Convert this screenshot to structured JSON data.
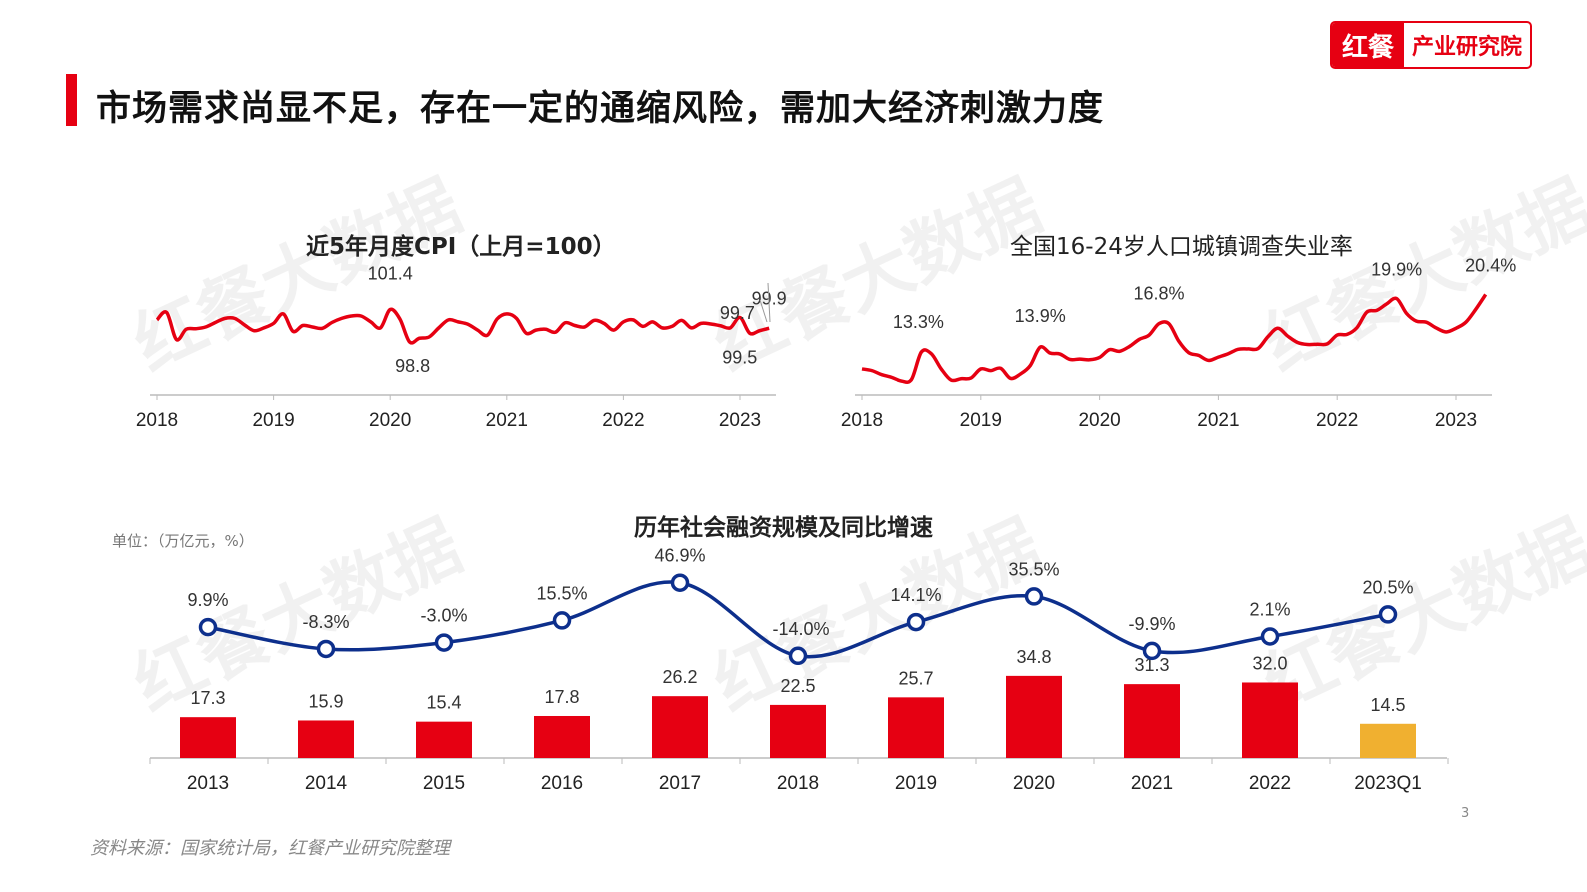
{
  "header": {
    "title": "市场需求尚显不足，存在一定的通缩风险，需加大经济刺激力度",
    "logo_left": "红餐",
    "logo_right": "产业研究院"
  },
  "watermark": "红餐大数据",
  "colors": {
    "accent": "#e60012",
    "line_blue": "#0d2f8c",
    "highlight_bar": "#f0b030",
    "axis": "#bbbbbb"
  },
  "footer": {
    "source": "资料来源：国家统计局，红餐产业研究院整理",
    "page": "3"
  },
  "chart_data": [
    {
      "type": "line",
      "title": "近5年月度CPI（上月=100）",
      "x_ticks": [
        "2018",
        "2019",
        "2020",
        "2021",
        "2022",
        "2023"
      ],
      "x_start": "2018-01",
      "x_end": "2023-04",
      "frequency": "monthly",
      "series": [
        {
          "values": [
            100.57,
            101.16,
            99.0,
            99.82,
            99.86,
            100.0,
            100.36,
            100.69,
            100.69,
            100.17,
            99.7,
            99.93,
            100.29,
            101.05,
            99.65,
            100.12,
            100.0,
            99.89,
            100.36,
            100.69,
            100.88,
            100.88,
            100.41,
            99.93,
            101.4,
            100.64,
            98.8,
            99.1,
            99.2,
            99.93,
            100.57,
            100.41,
            100.22,
            99.75,
            99.34,
            100.64,
            101.05,
            100.69,
            99.5,
            99.75,
            99.82,
            99.58,
            100.34,
            100.12,
            100.0,
            100.53,
            100.29,
            99.75,
            100.41,
            100.57,
            100.05,
            100.41,
            99.93,
            100.05,
            100.53,
            99.93,
            100.29,
            100.24,
            100.1,
            99.93,
            100.76,
            99.5,
            99.7,
            99.9
          ]
        }
      ],
      "annotations": [
        {
          "label": "101.4",
          "index": 24
        },
        {
          "label": "98.8",
          "index": 26
        },
        {
          "label": "99.7",
          "index": 62
        },
        {
          "label": "99.5",
          "index": 61
        },
        {
          "label": "99.9",
          "index": 63
        }
      ],
      "grid": false
    },
    {
      "type": "line",
      "title": "全国16-24岁人口城镇调查失业率",
      "x_ticks": [
        "2018",
        "2019",
        "2020",
        "2021",
        "2022",
        "2023"
      ],
      "x_start": "2018-01",
      "x_end": "2023-04",
      "frequency": "monthly",
      "series": [
        {
          "values": [
            11.21,
            11.0,
            10.5,
            10.17,
            9.71,
            9.91,
            13.3,
            13.09,
            11.21,
            9.83,
            10.0,
            10.08,
            11.21,
            11.0,
            11.29,
            10.04,
            10.58,
            11.63,
            13.9,
            13.17,
            13.05,
            12.38,
            12.42,
            12.34,
            12.63,
            13.59,
            13.38,
            13.97,
            14.85,
            15.39,
            16.8,
            16.8,
            14.64,
            13.22,
            12.88,
            12.26,
            12.67,
            13.09,
            13.63,
            13.68,
            13.72,
            15.18,
            16.23,
            15.26,
            14.47,
            14.22,
            14.26,
            14.3,
            15.39,
            15.47,
            16.31,
            18.23,
            18.44,
            19.24,
            19.9,
            18.07,
            17.11,
            16.98,
            16.27,
            15.77,
            16.23,
            16.98,
            18.57,
            20.4
          ]
        }
      ],
      "annotations": [
        {
          "label": "13.3%",
          "index": 6
        },
        {
          "label": "13.9%",
          "index": 18
        },
        {
          "label": "16.8%",
          "index": 30
        },
        {
          "label": "19.9%",
          "index": 54
        },
        {
          "label": "20.4%",
          "index": 63
        }
      ],
      "grid": false
    },
    {
      "type": "bar+line",
      "title": "历年社会融资规模及同比增速",
      "unit_label": "单位：（万亿元，%）",
      "categories": [
        "2013",
        "2014",
        "2015",
        "2016",
        "2017",
        "2018",
        "2019",
        "2020",
        "2021",
        "2022",
        "2023Q1"
      ],
      "bars": {
        "values": [
          17.3,
          15.9,
          15.4,
          17.8,
          26.2,
          22.5,
          25.7,
          34.8,
          31.3,
          32.0,
          14.5
        ],
        "labels": [
          "17.3",
          "15.9",
          "15.4",
          "17.8",
          "26.2",
          "22.5",
          "25.7",
          "34.8",
          "31.3",
          "32.0",
          "14.5"
        ]
      },
      "line": {
        "values": [
          9.9,
          -8.3,
          -3.0,
          15.5,
          46.9,
          -14.0,
          14.1,
          35.5,
          -9.9,
          2.1,
          20.5
        ],
        "labels": [
          "9.9%",
          "-8.3%",
          "-3.0%",
          "15.5%",
          "46.9%",
          "-14.0%",
          "14.1%",
          "35.5%",
          "-9.9%",
          "2.1%",
          "20.5%"
        ]
      },
      "grid": false
    }
  ]
}
